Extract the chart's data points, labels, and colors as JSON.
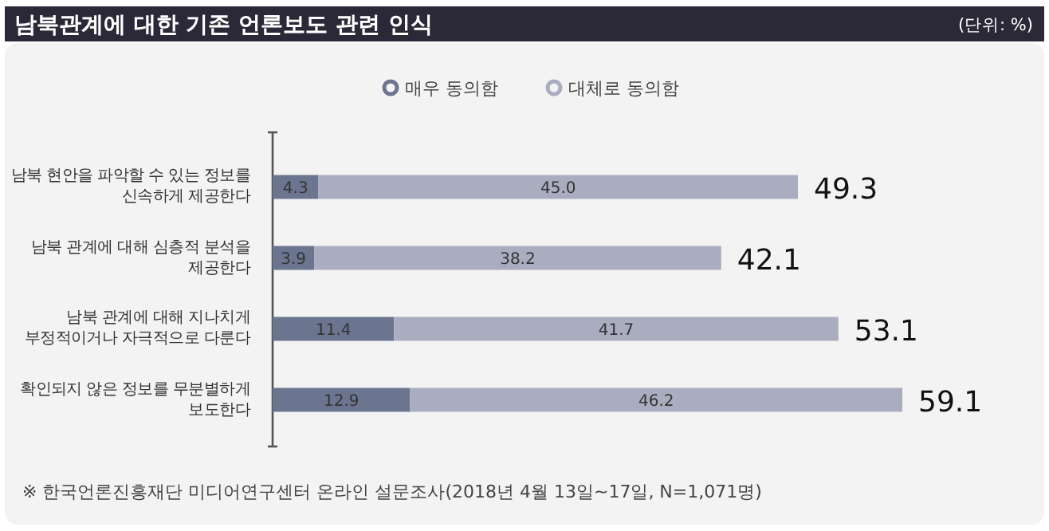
{
  "chart_data": {
    "type": "bar",
    "orientation": "horizontal",
    "stacked": true,
    "legend": "top",
    "title": "남북관계에 대한 기존 언론보도 관련 인식",
    "categories": [
      "남북 현안을 파악할 수 있는 정보를 신속하게 제공한다",
      "남북 관계에 대해 심층적 분석을 제공한다",
      "남북 관계에 대해 지나치게 부정적이거나 자극적으로 다룬다",
      "확인되지 않은 정보를 무분별하게 보도한다"
    ],
    "series": [
      {
        "name": "매우 동의함",
        "color": "#6b7590",
        "values": [
          4.3,
          3.9,
          11.4,
          12.9
        ],
        "value_labels": [
          "4.3",
          "3.9",
          "11.4",
          "12.9"
        ]
      },
      {
        "name": "대체로 동의함",
        "color": "#a9adbf",
        "values": [
          45.0,
          38.2,
          41.7,
          46.2
        ],
        "value_labels": [
          "45.0",
          "38.2",
          "41.7",
          "46.2"
        ]
      }
    ],
    "totals": [
      "49.3",
      "42.1",
      "53.1",
      "59.1"
    ],
    "annotations": [
      "(단위: %)",
      "※ 한국언론진흥재단 미디어연구센터 온라인 설문조사(2018년 4월 13일~17일, N=1,071명)"
    ]
  }
}
